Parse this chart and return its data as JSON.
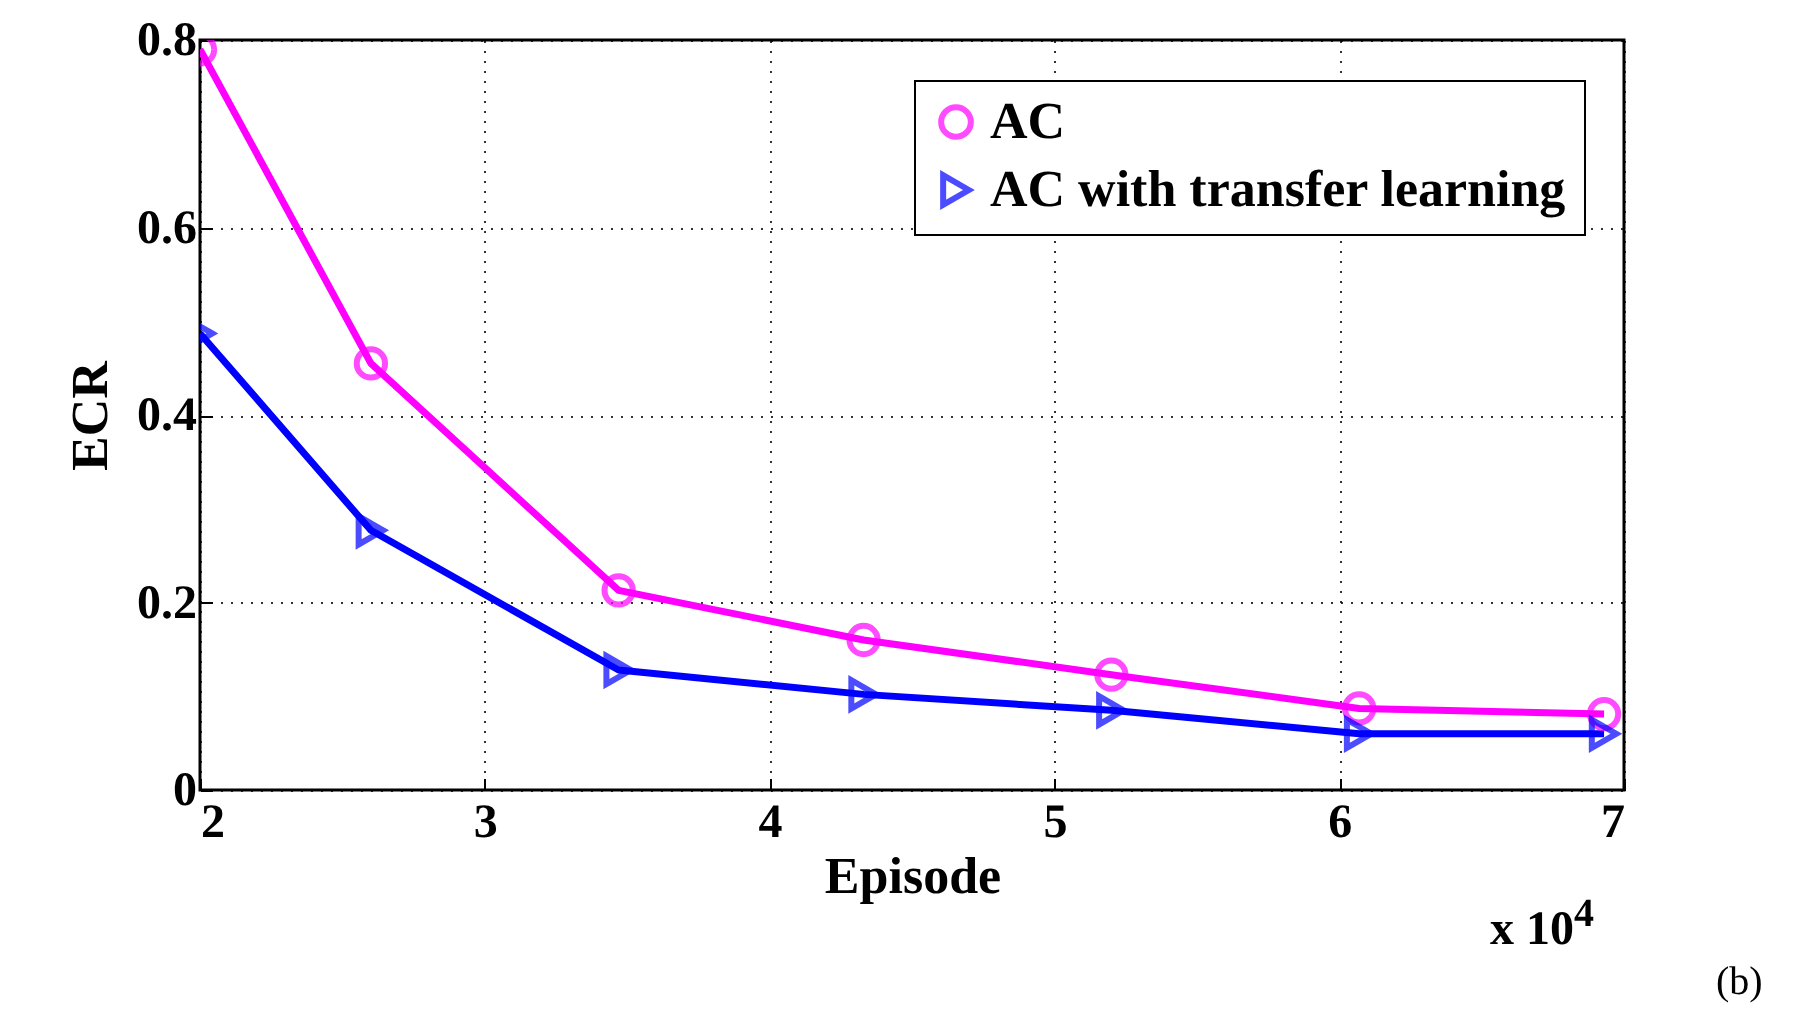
{
  "chart_data": {
    "type": "line",
    "xlabel": "Episode",
    "ylabel": "ECR",
    "x": [
      2,
      2.6,
      3.47,
      4.33,
      5.2,
      6.07,
      6.93
    ],
    "series": [
      {
        "name": "AC",
        "color": "#ff00ff",
        "marker": "circle",
        "values": [
          0.79,
          0.455,
          0.213,
          0.16,
          0.123,
          0.087,
          0.081
        ]
      },
      {
        "name": "AC with transfer learning",
        "color": "#0000ff",
        "marker": "triangle",
        "values": [
          0.487,
          0.277,
          0.128,
          0.102,
          0.085,
          0.06,
          0.06
        ]
      }
    ],
    "xlim": [
      2,
      7
    ],
    "xticks": [
      2,
      3,
      4,
      5,
      6,
      7
    ],
    "ylim": [
      0,
      0.8
    ],
    "yticks": [
      0,
      0.2,
      0.4,
      0.6,
      0.8
    ],
    "grid": true,
    "legend": "top right",
    "annotations": [
      "x 10$^{4}$",
      "(b)"
    ]
  }
}
